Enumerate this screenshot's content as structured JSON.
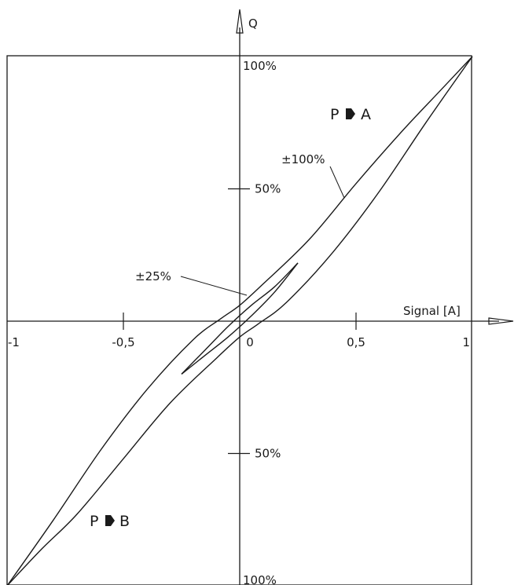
{
  "chart_data": {
    "type": "line",
    "title": "",
    "xlabel": "Signal [A]",
    "ylabel": "Q",
    "xlim": [
      -1,
      1
    ],
    "ylim": [
      -100,
      100
    ],
    "x_ticks": [
      {
        "value": -1,
        "label": "-1"
      },
      {
        "value": -0.5,
        "label": "-0,5"
      },
      {
        "value": 0,
        "label": "0"
      },
      {
        "value": 0.5,
        "label": "0,5"
      },
      {
        "value": 1,
        "label": "1"
      }
    ],
    "y_ticks": [
      {
        "value": 100,
        "label": "100%"
      },
      {
        "value": 50,
        "label": "50%"
      },
      {
        "value": -50,
        "label": "50%"
      },
      {
        "value": -100,
        "label": "100%"
      }
    ],
    "regions": [
      {
        "label": "P",
        "label_to": "A"
      },
      {
        "label": "P",
        "label_to": "B"
      }
    ],
    "series": [
      {
        "name": "±100%",
        "upper_x": [
          -1,
          -0.8,
          -0.6,
          -0.4,
          -0.2,
          -0.08,
          0,
          0.1,
          0.3,
          0.5,
          0.7,
          0.85,
          1
        ],
        "upper_y": [
          -100,
          -75,
          -49,
          -26,
          -7,
          1,
          6,
          14,
          31,
          52,
          72,
          86,
          100
        ],
        "lower_x": [
          -1,
          -0.85,
          -0.7,
          -0.5,
          -0.3,
          -0.1,
          0,
          0.08,
          0.2,
          0.4,
          0.6,
          0.8,
          1
        ],
        "lower_y": [
          -100,
          -86,
          -73,
          -52,
          -31,
          -14,
          -6,
          -1,
          7,
          26,
          49,
          75,
          100
        ]
      },
      {
        "name": "±25%",
        "upper_x": [
          -0.25,
          -0.15,
          -0.05,
          0.05,
          0.15,
          0.25
        ],
        "upper_y": [
          -20,
          -11,
          -2,
          6,
          13,
          22
        ],
        "lower_x": [
          -0.25,
          -0.15,
          -0.05,
          0.05,
          0.15,
          0.25
        ],
        "lower_y": [
          -20,
          -13,
          -6,
          2,
          11,
          22
        ]
      }
    ],
    "annotations": [
      {
        "text": "±100%",
        "target_series": "±100%"
      },
      {
        "text": "±25%",
        "target_series": "±25%"
      }
    ],
    "grid": false,
    "frame": true
  }
}
